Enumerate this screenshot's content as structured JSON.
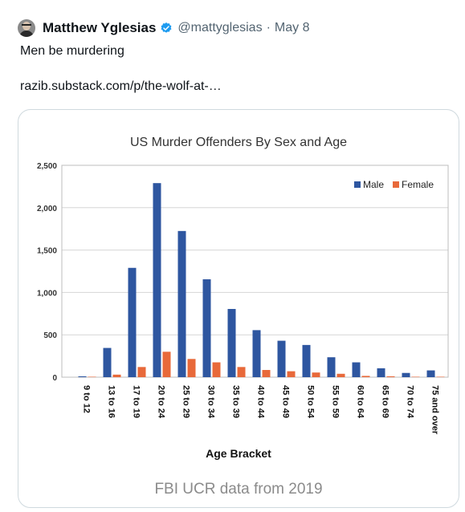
{
  "tweet": {
    "author_name": "Matthew Yglesias",
    "handle": "@mattyglesias",
    "separator": "·",
    "date": "May 8",
    "text": "Men be murdering",
    "link": "razib.substack.com/p/the-wolf-at-…",
    "verified_icon": "verified-badge-icon",
    "avatar_icon": "profile-avatar"
  },
  "card": {
    "caption": "FBI UCR data from 2019"
  },
  "colors": {
    "male": "#2e56a0",
    "female": "#e8693a",
    "verified": "#1d9bf0"
  },
  "chart_data": {
    "type": "bar",
    "title": "US Murder Offenders By Sex and Age",
    "xlabel": "Age Bracket",
    "ylabel": "",
    "ylim": [
      0,
      2500
    ],
    "yticks": [
      0,
      500,
      1000,
      1500,
      2000,
      2500
    ],
    "ytick_labels": [
      "0",
      "500",
      "1,000",
      "1,500",
      "2,000",
      "2,500"
    ],
    "grid": true,
    "legend_position": "top-right",
    "categories": [
      "9 to 12",
      "13 to 16",
      "17 to 19",
      "20 to 24",
      "25 to 29",
      "30 to 34",
      "35 to 39",
      "40 to 44",
      "45 to 49",
      "50 to 54",
      "55 to 59",
      "60 to 64",
      "65 to 69",
      "70 to 74",
      "75 and over"
    ],
    "series": [
      {
        "name": "Male",
        "values": [
          10,
          345,
          1290,
          2290,
          1725,
          1155,
          805,
          555,
          430,
          380,
          235,
          175,
          105,
          50,
          80
        ]
      },
      {
        "name": "Female",
        "values": [
          5,
          30,
          120,
          300,
          215,
          175,
          120,
          85,
          70,
          55,
          40,
          15,
          10,
          5,
          5
        ]
      }
    ]
  }
}
